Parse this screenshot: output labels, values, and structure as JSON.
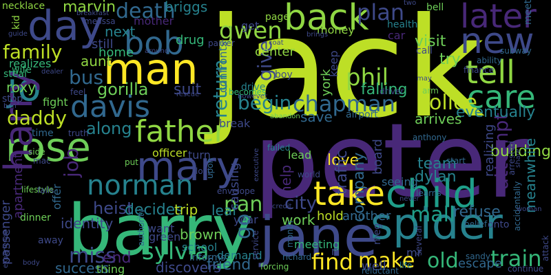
{
  "words": [
    {
      "text": "jack",
      "color": "#bddf26"
    },
    {
      "text": "peter",
      "color": "#482878"
    },
    {
      "text": "barry",
      "color": "#35b779"
    },
    {
      "text": "jane",
      "color": "#3e4989"
    },
    {
      "text": "spider",
      "color": "#26828e"
    },
    {
      "text": "man",
      "color": "#fde725"
    },
    {
      "text": "day",
      "color": "#3e4989"
    },
    {
      "text": "back",
      "color": "#90d743"
    },
    {
      "text": "bob",
      "color": "#31688e"
    },
    {
      "text": "jo",
      "color": "#26828e"
    },
    {
      "text": "new",
      "color": "#3e4989"
    },
    {
      "text": "later",
      "color": "#482878"
    },
    {
      "text": "tell",
      "color": "#90d743"
    },
    {
      "text": "care",
      "color": "#35b779"
    },
    {
      "text": "rose",
      "color": "#6ece58"
    },
    {
      "text": "mary",
      "color": "#3e4989"
    },
    {
      "text": "child",
      "color": "#1f9e89"
    },
    {
      "text": "take",
      "color": "#fde725"
    },
    {
      "text": "father",
      "color": "#90d743"
    },
    {
      "text": "davis",
      "color": "#31688e"
    },
    {
      "text": "harry",
      "color": "#482878"
    },
    {
      "text": "norman",
      "color": "#26828e"
    },
    {
      "text": "sylvia",
      "color": "#35b779"
    },
    {
      "text": "phil",
      "color": "#90d743"
    },
    {
      "text": "chapman",
      "color": "#31688e"
    },
    {
      "text": "police",
      "color": "#bddf26"
    },
    {
      "text": "gwen",
      "color": "#90d743"
    },
    {
      "text": "plan",
      "color": "#3e4989"
    },
    {
      "text": "death",
      "color": "#31688e"
    },
    {
      "text": "family",
      "color": "#bddf26"
    },
    {
      "text": "daddy",
      "color": "#bddf26"
    },
    {
      "text": "find",
      "color": "#fde725"
    },
    {
      "text": "make",
      "color": "#fde725"
    },
    {
      "text": "miss",
      "color": "#3e4989"
    },
    {
      "text": "train",
      "color": "#35b779"
    },
    {
      "text": "mall",
      "color": "#1f9e89"
    },
    {
      "text": "pan",
      "color": "#6ece58"
    },
    {
      "text": "go",
      "color": "#31688e"
    },
    {
      "text": "attempt",
      "color": "#482878"
    },
    {
      "text": "begin",
      "color": "#26828e"
    },
    {
      "text": "return",
      "color": "#26828e"
    },
    {
      "text": "give",
      "color": "#3e4989"
    },
    {
      "text": "bus",
      "color": "#31688e"
    },
    {
      "text": "gorilla",
      "color": "#6ece58"
    },
    {
      "text": "suit",
      "color": "#3e4989"
    },
    {
      "text": "job",
      "color": "#482878"
    },
    {
      "text": "heist",
      "color": "#3e4989"
    },
    {
      "text": "old",
      "color": "#35b779"
    },
    {
      "text": "city",
      "color": "#3e4989"
    },
    {
      "text": "help",
      "color": "#482878"
    },
    {
      "text": "hold",
      "color": "#bddf26"
    },
    {
      "text": "another",
      "color": "#31688e"
    },
    {
      "text": "work",
      "color": "#6ece58"
    },
    {
      "text": "friend",
      "color": "#31688e"
    },
    {
      "text": "along",
      "color": "#26828e"
    },
    {
      "text": "eventually",
      "color": "#26828e"
    },
    {
      "text": "try",
      "color": "#6ece58"
    },
    {
      "text": "refuse",
      "color": "#31688e"
    },
    {
      "text": "decides",
      "color": "#26828e"
    },
    {
      "text": "trip",
      "color": "#bddf26"
    },
    {
      "text": "leaf",
      "color": "#26828e"
    },
    {
      "text": "love",
      "color": "#fde725"
    },
    {
      "text": "team",
      "color": "#26828e"
    },
    {
      "text": "dylan",
      "color": "#26828e"
    },
    {
      "text": "building",
      "color": "#90d743"
    },
    {
      "text": "identity",
      "color": "#3e4989"
    },
    {
      "text": "marvin",
      "color": "#90d743"
    },
    {
      "text": "briggs",
      "color": "#26828e"
    },
    {
      "text": "aunt",
      "color": "#90d743"
    },
    {
      "text": "next",
      "color": "#26828e"
    },
    {
      "text": "home",
      "color": "#35b779"
    },
    {
      "text": "roxy",
      "color": "#6ece58"
    },
    {
      "text": "meanwhile",
      "color": "#26828e"
    },
    {
      "text": "passenger",
      "color": "#3e4989"
    },
    {
      "text": "apartment",
      "color": "#482878"
    },
    {
      "text": "visit",
      "color": "#6ece58"
    },
    {
      "text": "brown",
      "color": "#6ece58"
    },
    {
      "text": "green",
      "color": "#3e4989"
    },
    {
      "text": "want",
      "color": "#3e4989"
    },
    {
      "text": "end",
      "color": "#482878"
    },
    {
      "text": "success",
      "color": "#31688e"
    },
    {
      "text": "thing",
      "color": "#6ece58"
    },
    {
      "text": "discovers",
      "color": "#3e4989"
    },
    {
      "text": "school",
      "color": "#26828e"
    },
    {
      "text": "traffic",
      "color": "#3e4989"
    },
    {
      "text": "company",
      "color": "#31688e"
    },
    {
      "text": "board",
      "color": "#3e4989"
    },
    {
      "text": "falling",
      "color": "#35b779"
    },
    {
      "text": "realizing",
      "color": "#3e4989"
    },
    {
      "text": "save",
      "color": "#31688e"
    },
    {
      "text": "arrives",
      "color": "#6ece58"
    },
    {
      "text": "causing",
      "color": "#3e4989"
    },
    {
      "text": "confronts",
      "color": "#31688e"
    },
    {
      "text": "drug",
      "color": "#35b779"
    },
    {
      "text": "still",
      "color": "#3e4989"
    },
    {
      "text": "realizes",
      "color": "#35b779"
    },
    {
      "text": "mother",
      "color": "#482878"
    },
    {
      "text": "money",
      "color": "#90d743"
    },
    {
      "text": "center",
      "color": "#90d743"
    },
    {
      "text": "york",
      "color": "#6ece58"
    },
    {
      "text": "keep",
      "color": "#3e4989"
    },
    {
      "text": "fight",
      "color": "#6ece58"
    },
    {
      "text": "officer",
      "color": "#bddf26"
    },
    {
      "text": "turn",
      "color": "#3e4989"
    },
    {
      "text": "break",
      "color": "#3e4989"
    },
    {
      "text": "well",
      "color": "#3e4989"
    },
    {
      "text": "demand",
      "color": "#26828e"
    },
    {
      "text": "escape",
      "color": "#31688e"
    },
    {
      "text": "meeting",
      "color": "#35b779"
    },
    {
      "text": "seeing",
      "color": "#31688e"
    },
    {
      "text": "lead",
      "color": "#6ece58"
    },
    {
      "text": "kid",
      "color": "#90d743"
    },
    {
      "text": "steal",
      "color": "#35b779"
    },
    {
      "text": "stop",
      "color": "#3e4989"
    },
    {
      "text": "wife",
      "color": "#35b779"
    },
    {
      "text": "time",
      "color": "#31688e"
    },
    {
      "text": "necklace",
      "color": "#90d743"
    },
    {
      "text": "page",
      "color": "#90d743"
    },
    {
      "text": "meet",
      "color": "#31688e"
    },
    {
      "text": "bell",
      "color": "#6ece58"
    },
    {
      "text": "get",
      "color": "#3e4989"
    },
    {
      "text": "car",
      "color": "#482878"
    },
    {
      "text": "health",
      "color": "#26828e"
    },
    {
      "text": "call",
      "color": "#3e4989"
    },
    {
      "text": "subway",
      "color": "#31688e"
    },
    {
      "text": "ability",
      "color": "#31688e"
    },
    {
      "text": "finance",
      "color": "#3e4989"
    },
    {
      "text": "arm",
      "color": "#6ece58"
    },
    {
      "text": "drive",
      "color": "#26828e"
    },
    {
      "text": "boy",
      "color": "#3e4989"
    },
    {
      "text": "becomes",
      "color": "#35b779"
    },
    {
      "text": "however",
      "color": "#3e4989"
    },
    {
      "text": "abandon",
      "color": "#6ece58"
    },
    {
      "text": "airport",
      "color": "#31688e"
    },
    {
      "text": "driver",
      "color": "#3e4989"
    },
    {
      "text": "anthony",
      "color": "#31688e"
    },
    {
      "text": "failed",
      "color": "#26828e"
    },
    {
      "text": "start",
      "color": "#31688e"
    },
    {
      "text": "learns",
      "color": "#31688e"
    },
    {
      "text": "arrested",
      "color": "#3e4989"
    },
    {
      "text": "accidentally",
      "color": "#31688e"
    },
    {
      "text": "onto",
      "color": "#3e4989"
    },
    {
      "text": "belief",
      "color": "#31688e"
    },
    {
      "text": "woman",
      "color": "#3e4989"
    },
    {
      "text": "never",
      "color": "#3e4989"
    },
    {
      "text": "world",
      "color": "#3e4989"
    },
    {
      "text": "envelope",
      "color": "#3e4989"
    },
    {
      "text": "lost",
      "color": "#3e4989"
    },
    {
      "text": "upon",
      "color": "#31688e"
    },
    {
      "text": "executive",
      "color": "#3e4989"
    },
    {
      "text": "lifestyle",
      "color": "#6ece58"
    },
    {
      "text": "dinner",
      "color": "#6ece58"
    },
    {
      "text": "offer",
      "color": "#31688e"
    },
    {
      "text": "away",
      "color": "#3e4989"
    },
    {
      "text": "fails",
      "color": "#3e4989"
    },
    {
      "text": "mac",
      "color": "#3e4989"
    },
    {
      "text": "side",
      "color": "#6ece58"
    },
    {
      "text": "truth",
      "color": "#3e4989"
    },
    {
      "text": "put",
      "color": "#6ece58"
    },
    {
      "text": "authority",
      "color": "#31688e"
    },
    {
      "text": "informs",
      "color": "#31688e"
    },
    {
      "text": "service",
      "color": "#3e4989"
    },
    {
      "text": "month",
      "color": "#31688e"
    },
    {
      "text": "richard",
      "color": "#31688e"
    },
    {
      "text": "forcing",
      "color": "#6ece58"
    },
    {
      "text": "reluctant",
      "color": "#31688e"
    },
    {
      "text": "life",
      "color": "#26828e"
    },
    {
      "text": "several",
      "color": "#3e4989"
    },
    {
      "text": "sandy",
      "color": "#31688e"
    },
    {
      "text": "continue",
      "color": "#3e4989"
    },
    {
      "text": "attack",
      "color": "#3e4989"
    },
    {
      "text": "year",
      "color": "#3e4989"
    },
    {
      "text": "guide",
      "color": "#3e4989"
    },
    {
      "text": "melissa",
      "color": "#3e4989"
    },
    {
      "text": "breakfast",
      "color": "#3e4989"
    },
    {
      "text": "parker",
      "color": "#3e4989"
    },
    {
      "text": "coat",
      "color": "#3e4989"
    },
    {
      "text": "brings",
      "color": "#3e4989"
    },
    {
      "text": "two",
      "color": "#3e4989"
    },
    {
      "text": "around",
      "color": "#3e4989"
    },
    {
      "text": "dealer",
      "color": "#3e4989"
    },
    {
      "text": "feel",
      "color": "#3e4989"
    },
    {
      "text": "rescue",
      "color": "#3e4989"
    },
    {
      "text": "ben",
      "color": "#3e4989"
    },
    {
      "text": "credit",
      "color": "#3e4989"
    },
    {
      "text": "mr",
      "color": "#3e4989"
    },
    {
      "text": "may",
      "color": "#3e4989"
    },
    {
      "text": "share",
      "color": "#3e4989"
    },
    {
      "text": "body",
      "color": "#3e4989"
    },
    {
      "text": "meg",
      "color": "#3e4989"
    },
    {
      "text": "n",
      "color": "#3e4989"
    },
    {
      "text": "experience",
      "color": "#3e4989"
    }
  ]
}
